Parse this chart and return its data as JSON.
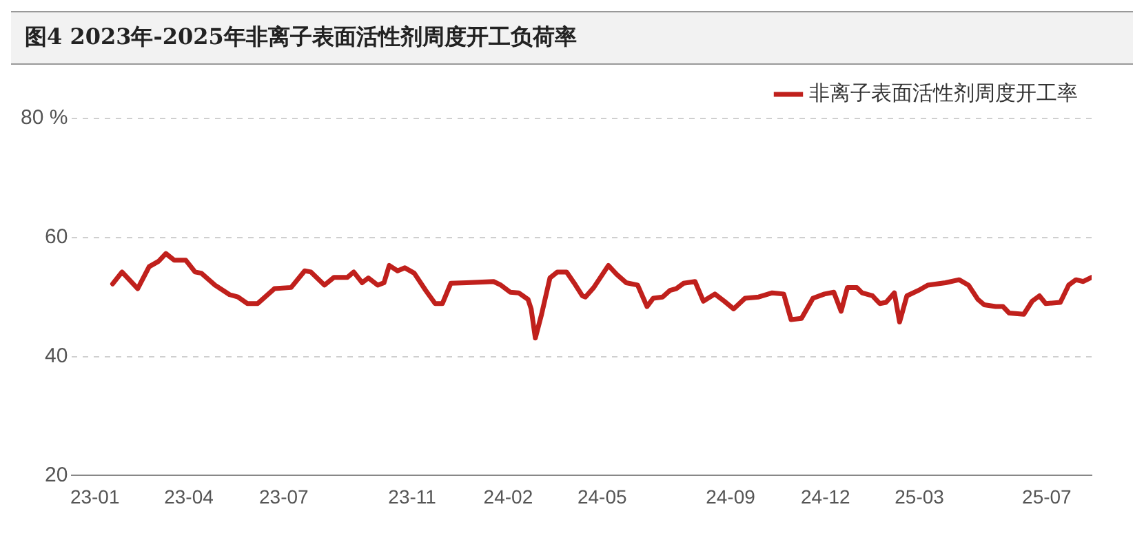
{
  "chart_data": {
    "type": "line",
    "title": "图4  2023年-2025年非离子表面活性剂周度开工负荷率",
    "x": [
      "2023-01-18",
      "2023-01-27",
      "2023-02-11",
      "2023-02-22",
      "2023-03-03",
      "2023-03-10",
      "2023-03-18",
      "2023-03-29",
      "2023-04-07",
      "2023-04-13",
      "2023-04-26",
      "2023-05-10",
      "2023-05-18",
      "2023-05-27",
      "2023-06-06",
      "2023-06-22",
      "2023-07-08",
      "2023-07-21",
      "2023-07-27",
      "2023-08-09",
      "2023-08-18",
      "2023-08-31",
      "2023-09-06",
      "2023-09-14",
      "2023-09-20",
      "2023-09-29",
      "2023-10-05",
      "2023-10-10",
      "2023-10-18",
      "2023-10-25",
      "2023-11-03",
      "2023-11-14",
      "2023-11-23",
      "2023-11-30",
      "2023-12-08",
      "2023-12-23",
      "2024-01-18",
      "2024-01-25",
      "2024-02-03",
      "2024-02-11",
      "2024-02-20",
      "2024-02-23",
      "2024-02-27",
      "2024-03-04",
      "2024-03-12",
      "2024-03-19",
      "2024-03-28",
      "2024-04-04",
      "2024-04-12",
      "2024-04-15",
      "2024-04-23",
      "2024-05-07",
      "2024-05-15",
      "2024-05-24",
      "2024-06-04",
      "2024-06-13",
      "2024-06-19",
      "2024-06-28",
      "2024-07-05",
      "2024-07-11",
      "2024-07-18",
      "2024-07-29",
      "2024-08-06",
      "2024-08-17",
      "2024-08-26",
      "2024-09-04",
      "2024-09-15",
      "2024-09-28",
      "2024-10-11",
      "2024-10-22",
      "2024-10-29",
      "2024-11-08",
      "2024-11-19",
      "2024-11-30",
      "2024-12-09",
      "2024-12-16",
      "2024-12-22",
      "2024-12-31",
      "2025-01-05",
      "2025-01-15",
      "2025-01-22",
      "2025-01-28",
      "2025-02-05",
      "2025-02-10",
      "2025-02-17",
      "2025-02-28",
      "2025-03-09",
      "2025-03-26",
      "2025-04-08",
      "2025-04-17",
      "2025-04-26",
      "2025-05-02",
      "2025-05-13",
      "2025-05-20",
      "2025-05-26",
      "2025-06-09",
      "2025-06-17",
      "2025-06-24",
      "2025-06-30",
      "2025-07-14",
      "2025-07-22",
      "2025-07-29",
      "2025-08-05",
      "2025-08-13"
    ],
    "series": [
      {
        "name": "非离子表面活性剂周度开工率",
        "color": "#c0201c",
        "values": [
          52.2,
          54.2,
          51.4,
          55.1,
          56,
          57.3,
          56.2,
          56.2,
          54.2,
          54,
          52,
          50.4,
          50,
          48.9,
          48.9,
          51.4,
          51.6,
          54.4,
          54.2,
          52,
          53.3,
          53.3,
          54.2,
          52.4,
          53.2,
          52,
          52.4,
          55.3,
          54.4,
          54.9,
          54,
          51.1,
          48.9,
          48.9,
          52.3,
          52.4,
          52.6,
          52,
          50.8,
          50.7,
          49.6,
          48,
          43.1,
          47.1,
          53.2,
          54.2,
          54.2,
          52.4,
          50.2,
          50,
          51.6,
          55.3,
          53.8,
          52.4,
          52,
          48.4,
          49.8,
          50,
          51.1,
          51.4,
          52.3,
          52.6,
          49.3,
          50.5,
          49.3,
          48,
          49.8,
          50,
          50.7,
          50.5,
          46.2,
          46.4,
          49.8,
          50.5,
          50.8,
          47.6,
          51.6,
          51.6,
          50.7,
          50.2,
          48.9,
          49.1,
          50.7,
          45.8,
          50.2,
          51.1,
          52,
          52.4,
          52.9,
          52,
          49.6,
          48.7,
          48.4,
          48.4,
          47.3,
          47.1,
          49.3,
          50.2,
          48.9,
          49.1,
          52,
          52.9,
          52.6,
          53.3
        ]
      }
    ],
    "xlim": [
      "2022-12-10",
      "2025-08-13"
    ],
    "xticks": [
      {
        "value": "2023-01",
        "label": "23-01"
      },
      {
        "value": "2023-04",
        "label": "23-04"
      },
      {
        "value": "2023-07",
        "label": "23-07"
      },
      {
        "value": "2023-11",
        "label": "23-11"
      },
      {
        "value": "2024-02",
        "label": "24-02"
      },
      {
        "value": "2024-05",
        "label": "24-05"
      },
      {
        "value": "2024-09",
        "label": "24-09"
      },
      {
        "value": "2024-12",
        "label": "24-12"
      },
      {
        "value": "2025-03",
        "label": "25-03"
      },
      {
        "value": "2025-07",
        "label": "25-07"
      }
    ],
    "ylim": [
      20,
      80
    ],
    "yticks": [
      20,
      40,
      60,
      {
        "value": 80,
        "label": "80 %"
      }
    ],
    "grid": "y",
    "line_style": "solid",
    "marker": "none",
    "legend": "top right"
  }
}
